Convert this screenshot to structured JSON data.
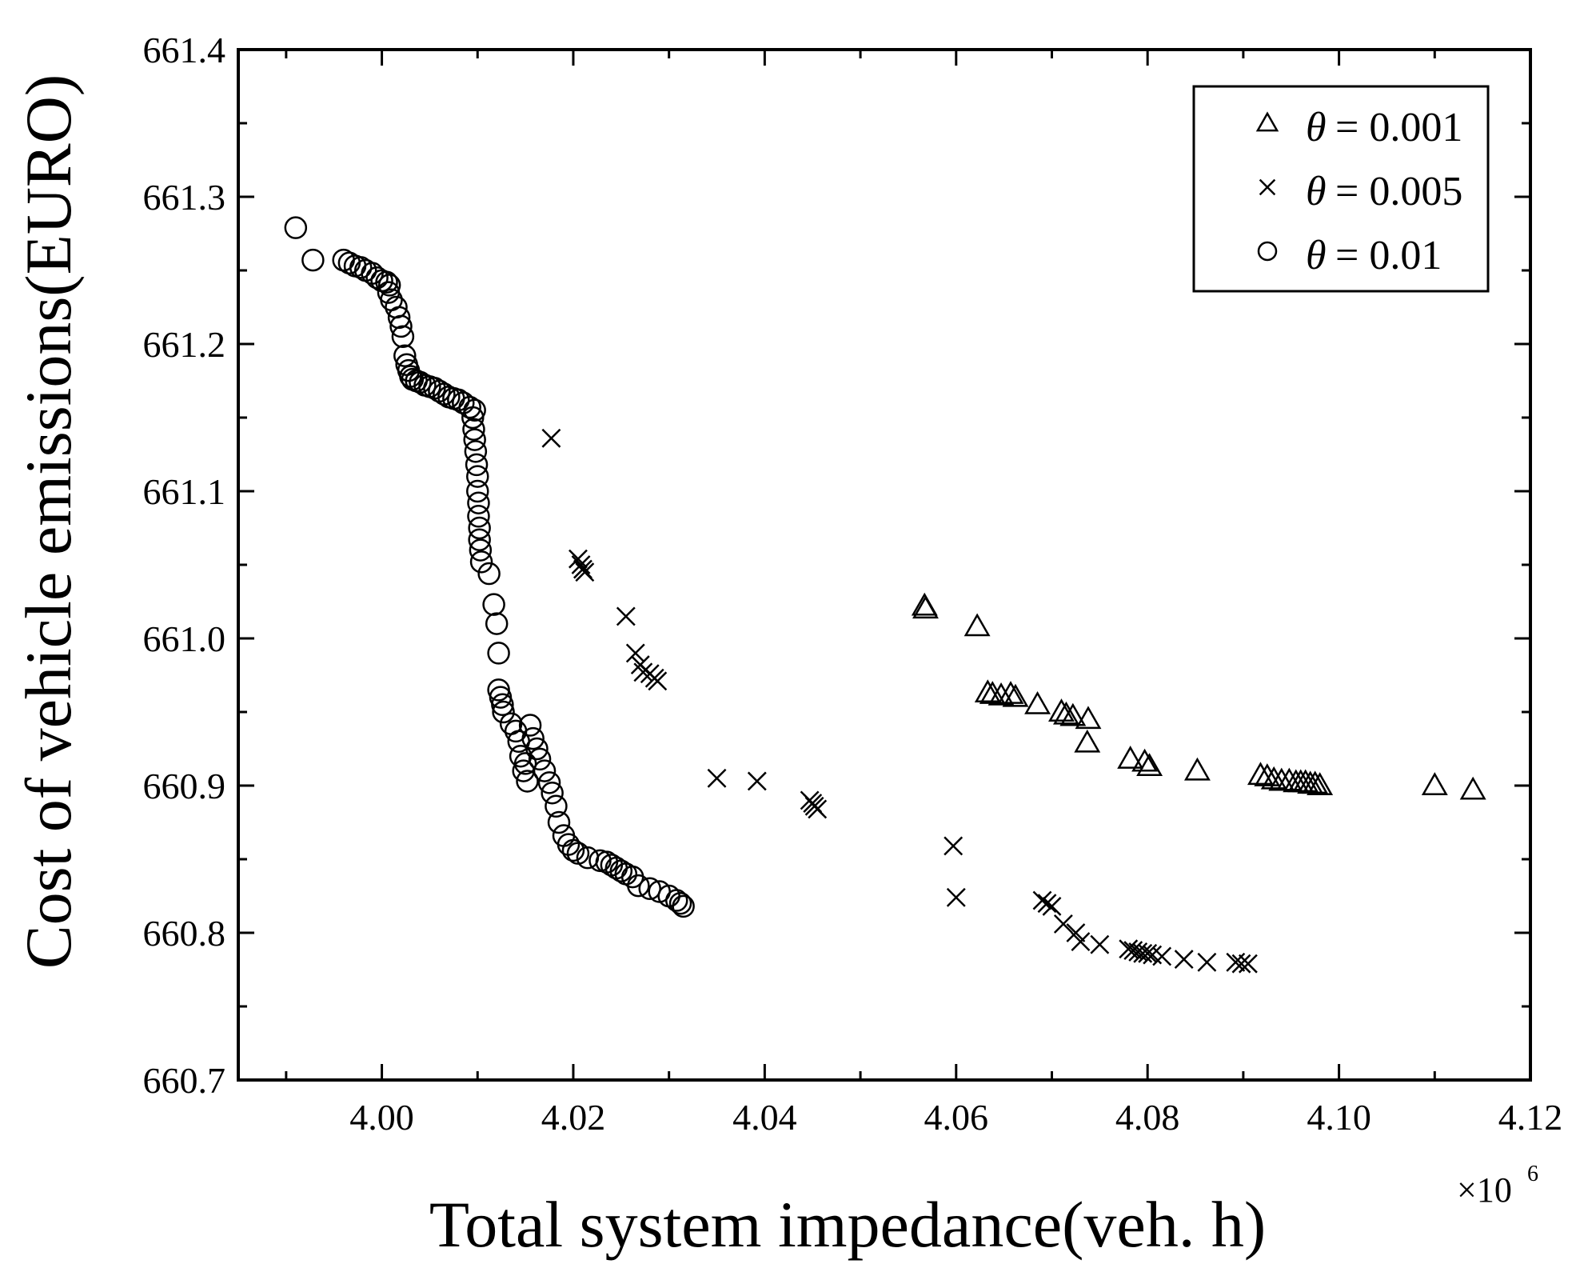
{
  "chart_data": {
    "type": "scatter",
    "title": "",
    "xlabel": "Total system impedance(veh. h)",
    "ylabel": "Cost of vehicle emissions(EURO)",
    "x_multiplier_base": "×10",
    "x_multiplier_exp": "6",
    "xlim": [
      3.985,
      4.12
    ],
    "ylim": [
      660.7,
      661.4
    ],
    "x_ticks": [
      "4.00",
      "4.02",
      "4.04",
      "4.06",
      "4.08",
      "4.10",
      "4.12"
    ],
    "x_tick_values": [
      4.0,
      4.02,
      4.04,
      4.06,
      4.08,
      4.1,
      4.12
    ],
    "y_ticks": [
      "660.7",
      "660.8",
      "660.9",
      "661.0",
      "661.1",
      "661.2",
      "661.3",
      "661.4"
    ],
    "y_tick_values": [
      660.7,
      660.8,
      660.9,
      661.0,
      661.1,
      661.2,
      661.3,
      661.4
    ],
    "grid": false,
    "legend_position": "top-right",
    "series": [
      {
        "name": "θ = 0.001",
        "symbol": "θ",
        "label_value": "= 0.001",
        "marker": "triangle",
        "points": [
          [
            4.0567,
            661.022
          ],
          [
            4.0568,
            661.02
          ],
          [
            4.0622,
            661.008
          ],
          [
            4.0633,
            660.963
          ],
          [
            4.0638,
            660.962
          ],
          [
            4.0647,
            660.961
          ],
          [
            4.0657,
            660.962
          ],
          [
            4.0662,
            660.96
          ],
          [
            4.0685,
            660.955
          ],
          [
            4.071,
            660.95
          ],
          [
            4.0715,
            660.948
          ],
          [
            4.0722,
            660.947
          ],
          [
            4.0738,
            660.945
          ],
          [
            4.0737,
            660.929
          ],
          [
            4.0782,
            660.918
          ],
          [
            4.0797,
            660.916
          ],
          [
            4.0802,
            660.913
          ],
          [
            4.0852,
            660.91
          ],
          [
            4.0918,
            660.907
          ],
          [
            4.0925,
            660.906
          ],
          [
            4.0932,
            660.904
          ],
          [
            4.094,
            660.903
          ],
          [
            4.0948,
            660.903
          ],
          [
            4.0955,
            660.902
          ],
          [
            4.096,
            660.902
          ],
          [
            4.0965,
            660.902
          ],
          [
            4.097,
            660.901
          ],
          [
            4.0975,
            660.901
          ],
          [
            4.098,
            660.9
          ],
          [
            4.11,
            660.9
          ],
          [
            4.114,
            660.897
          ]
        ]
      },
      {
        "name": "θ = 0.005",
        "symbol": "θ",
        "label_value": "= 0.005",
        "marker": "x",
        "points": [
          [
            4.0177,
            661.136
          ],
          [
            4.0205,
            661.054
          ],
          [
            4.0208,
            661.05
          ],
          [
            4.021,
            661.047
          ],
          [
            4.0212,
            661.045
          ],
          [
            4.0255,
            661.015
          ],
          [
            4.0265,
            660.99
          ],
          [
            4.027,
            660.982
          ],
          [
            4.0273,
            660.977
          ],
          [
            4.028,
            660.976
          ],
          [
            4.0285,
            660.973
          ],
          [
            4.0288,
            660.971
          ],
          [
            4.035,
            660.905
          ],
          [
            4.0392,
            660.903
          ],
          [
            4.0447,
            660.89
          ],
          [
            4.045,
            660.888
          ],
          [
            4.0452,
            660.886
          ],
          [
            4.0455,
            660.884
          ],
          [
            4.0597,
            660.859
          ],
          [
            4.06,
            660.824
          ],
          [
            4.069,
            660.822
          ],
          [
            4.0695,
            660.82
          ],
          [
            4.07,
            660.818
          ],
          [
            4.0712,
            660.806
          ],
          [
            4.0725,
            660.8
          ],
          [
            4.073,
            660.794
          ],
          [
            4.075,
            660.792
          ],
          [
            4.078,
            660.789
          ],
          [
            4.0785,
            660.788
          ],
          [
            4.079,
            660.787
          ],
          [
            4.0795,
            660.786
          ],
          [
            4.08,
            660.786
          ],
          [
            4.0805,
            660.785
          ],
          [
            4.0815,
            660.784
          ],
          [
            4.0838,
            660.782
          ],
          [
            4.0862,
            660.78
          ],
          [
            4.0892,
            660.78
          ],
          [
            4.0898,
            660.779
          ],
          [
            4.0905,
            660.779
          ]
        ]
      },
      {
        "name": "θ = 0.01",
        "symbol": "θ",
        "label_value": "= 0.01",
        "marker": "circle",
        "points": [
          [
            3.991,
            661.279
          ],
          [
            3.9928,
            661.257
          ],
          [
            3.996,
            661.257
          ],
          [
            3.9966,
            661.255
          ],
          [
            3.9972,
            661.253
          ],
          [
            3.9978,
            661.252
          ],
          [
            3.9983,
            661.25
          ],
          [
            3.999,
            661.248
          ],
          [
            3.9995,
            661.245
          ],
          [
            4.0,
            661.243
          ],
          [
            4.0005,
            661.242
          ],
          [
            4.0008,
            661.24
          ],
          [
            4.0007,
            661.235
          ],
          [
            4.001,
            661.23
          ],
          [
            4.0015,
            661.225
          ],
          [
            4.0018,
            661.218
          ],
          [
            4.002,
            661.212
          ],
          [
            4.0022,
            661.205
          ],
          [
            4.0024,
            661.192
          ],
          [
            4.0026,
            661.186
          ],
          [
            4.0028,
            661.182
          ],
          [
            4.003,
            661.178
          ],
          [
            4.0032,
            661.176
          ],
          [
            4.0036,
            661.175
          ],
          [
            4.004,
            661.174
          ],
          [
            4.0045,
            661.172
          ],
          [
            4.005,
            661.171
          ],
          [
            4.0055,
            661.17
          ],
          [
            4.006,
            661.168
          ],
          [
            4.0065,
            661.166
          ],
          [
            4.007,
            661.164
          ],
          [
            4.0075,
            661.163
          ],
          [
            4.008,
            661.162
          ],
          [
            4.0085,
            661.16
          ],
          [
            4.0092,
            661.157
          ],
          [
            4.0097,
            661.155
          ],
          [
            4.0095,
            661.15
          ],
          [
            4.0096,
            661.142
          ],
          [
            4.0097,
            661.135
          ],
          [
            4.0098,
            661.127
          ],
          [
            4.0099,
            661.118
          ],
          [
            4.01,
            661.11
          ],
          [
            4.01,
            661.1
          ],
          [
            4.0101,
            661.092
          ],
          [
            4.0101,
            661.083
          ],
          [
            4.0102,
            661.075
          ],
          [
            4.0102,
            661.067
          ],
          [
            4.0103,
            661.06
          ],
          [
            4.0104,
            661.052
          ],
          [
            4.0112,
            661.044
          ],
          [
            4.0117,
            661.023
          ],
          [
            4.012,
            661.01
          ],
          [
            4.0122,
            660.99
          ],
          [
            4.0122,
            660.965
          ],
          [
            4.0124,
            660.96
          ],
          [
            4.0126,
            660.955
          ],
          [
            4.0127,
            660.95
          ],
          [
            4.0135,
            660.942
          ],
          [
            4.014,
            660.937
          ],
          [
            4.0143,
            660.93
          ],
          [
            4.0145,
            660.92
          ],
          [
            4.015,
            660.915
          ],
          [
            4.0148,
            660.91
          ],
          [
            4.0152,
            660.903
          ],
          [
            4.0155,
            660.941
          ],
          [
            4.0158,
            660.932
          ],
          [
            4.0162,
            660.925
          ],
          [
            4.0165,
            660.918
          ],
          [
            4.017,
            660.91
          ],
          [
            4.0175,
            660.902
          ],
          [
            4.0178,
            660.895
          ],
          [
            4.0182,
            660.886
          ],
          [
            4.0185,
            660.875
          ],
          [
            4.019,
            660.866
          ],
          [
            4.0195,
            660.86
          ],
          [
            4.02,
            660.856
          ],
          [
            4.0205,
            660.854
          ],
          [
            4.0215,
            660.851
          ],
          [
            4.0228,
            660.849
          ],
          [
            4.0235,
            660.848
          ],
          [
            4.024,
            660.846
          ],
          [
            4.0245,
            660.844
          ],
          [
            4.025,
            660.842
          ],
          [
            4.0255,
            660.84
          ],
          [
            4.0262,
            660.838
          ],
          [
            4.0268,
            660.832
          ],
          [
            4.028,
            660.83
          ],
          [
            4.029,
            660.828
          ],
          [
            4.03,
            660.825
          ],
          [
            4.0308,
            660.822
          ],
          [
            4.0312,
            660.82
          ],
          [
            4.0315,
            660.818
          ]
        ]
      }
    ]
  }
}
